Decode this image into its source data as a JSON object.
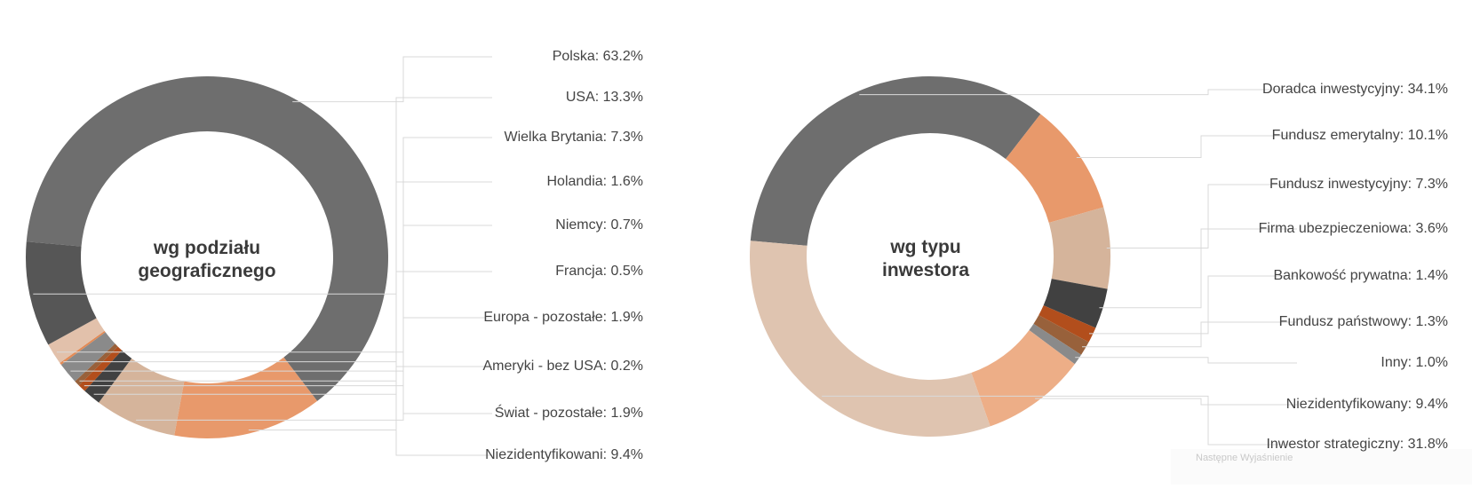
{
  "chart_data": [
    {
      "type": "pie",
      "center_title": [
        "wg podziału",
        "geograficznego"
      ],
      "slices": [
        {
          "label": "Polska: 63.2%",
          "value": 63.2,
          "color": "#6e6e6e"
        },
        {
          "label": "USA: 13.3%",
          "value": 13.3,
          "color": "#e8996b"
        },
        {
          "label": "Wielka Brytania: 7.3%",
          "value": 7.3,
          "color": "#d5b49b"
        },
        {
          "label": "Holandia: 1.6%",
          "value": 1.6,
          "color": "#414141"
        },
        {
          "label": "Niemcy: 0.7%",
          "value": 0.7,
          "color": "#b24e1c"
        },
        {
          "label": "Francja: 0.5%",
          "value": 0.5,
          "color": "#98613b"
        },
        {
          "label": "Europa - pozostałe: 1.9%",
          "value": 1.9,
          "color": "#8a8a8a"
        },
        {
          "label": "Ameryki - bez USA: 0.2%",
          "value": 0.2,
          "color": "#e38a55"
        },
        {
          "label": "Świat - pozostałe: 1.9%",
          "value": 1.9,
          "color": "#e2c1ab"
        },
        {
          "label": "Niezidentyfikowani: 9.4%",
          "value": 9.4,
          "color": "#565656"
        }
      ]
    },
    {
      "type": "pie",
      "center_title": [
        "wg typu",
        "inwestora"
      ],
      "slices": [
        {
          "label": "Doradca inwestycyjny: 34.1%",
          "value": 34.1,
          "color": "#6e6e6e"
        },
        {
          "label": "Fundusz emerytalny: 10.1%",
          "value": 10.1,
          "color": "#e8996b"
        },
        {
          "label": "Fundusz inwestycyjny: 7.3%",
          "value": 7.3,
          "color": "#d5b49b"
        },
        {
          "label": "Firma ubezpieczeniowa: 3.6%",
          "value": 3.6,
          "color": "#414141"
        },
        {
          "label": "Bankowość prywatna: 1.4%",
          "value": 1.4,
          "color": "#b24e1c"
        },
        {
          "label": "Fundusz państwowy: 1.3%",
          "value": 1.3,
          "color": "#98613b"
        },
        {
          "label": "Inny: 1.0%",
          "value": 1.0,
          "color": "#8a8a8a"
        },
        {
          "label": "Niezidentyfikowany: 9.4%",
          "value": 9.4,
          "color": "#edae87"
        },
        {
          "label": "Inwestor strategiczny: 31.8%",
          "value": 31.8,
          "color": "#dfc4b0"
        }
      ]
    }
  ],
  "overlay_text": "Następne Wyjaśnienie"
}
